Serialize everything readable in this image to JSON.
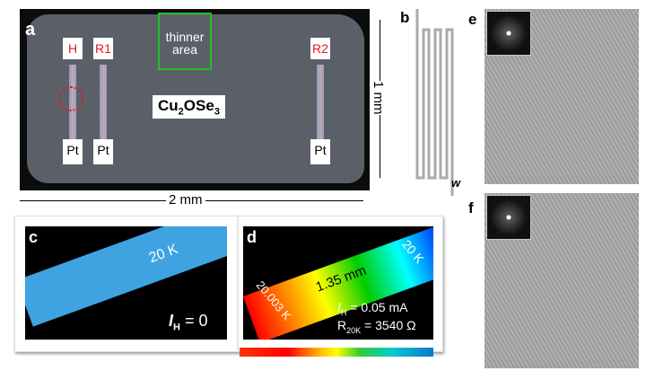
{
  "panel_a": {
    "label": "a",
    "pads": [
      "H",
      "R1",
      "R2"
    ],
    "bottom_pads": [
      "Pt",
      "Pt",
      "Pt"
    ],
    "region": "thinner area",
    "material": "Cu2OSeO3",
    "material_parts": [
      "Cu",
      "2",
      "OSe",
      "O",
      "3"
    ],
    "scale_vertical": "1 mm",
    "scale_horizontal": "2 mm",
    "colors": {
      "region_box": "#22c022",
      "pad_label": "#e8141c"
    }
  },
  "panel_b": {
    "label": "b",
    "width_label": "w"
  },
  "panel_c": {
    "label": "c",
    "temp": "20 K",
    "current_sym": "I",
    "current_sub": "H",
    "current_val": "= 0"
  },
  "panel_d": {
    "label": "d",
    "temp_cold": "20 K",
    "temp_hot": "20.003 K",
    "length": "1.35 mm",
    "current_sym": "I",
    "current_sub": "H",
    "current_val": "= 0.05 mA",
    "res_sym": "R",
    "res_sub": "20K",
    "res_val": "= 3540 Ω"
  },
  "panel_e": {
    "label": "e"
  },
  "panel_f": {
    "label": "f"
  }
}
